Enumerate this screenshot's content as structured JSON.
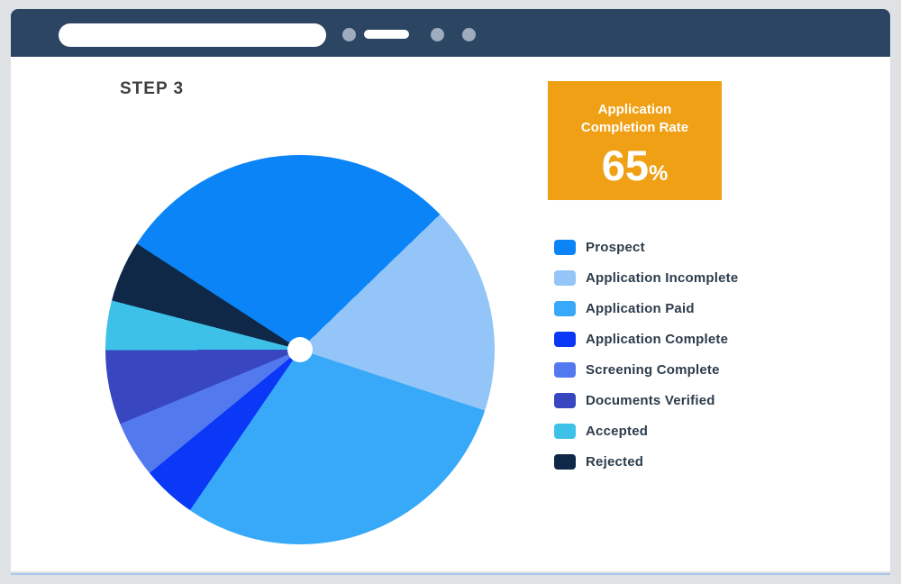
{
  "browser_chrome": {
    "bar_color": "#2B4562",
    "address_bar": {
      "value": "",
      "placeholder": ""
    },
    "control_dot_color": "#9FABBE"
  },
  "page": {
    "step_label": "STEP 3",
    "badge": {
      "title": "Application Completion Rate",
      "value": "65",
      "unit": "%",
      "bg_color": "#EFA014",
      "text_color": "#FFFFFF"
    },
    "chart_data": {
      "type": "pie",
      "title": "",
      "start_angle_deg": -57,
      "legend_position": "right",
      "center_hole": "small white dot",
      "slices": [
        {
          "label": "Prospect",
          "color": "#0A84F6",
          "percent": 28.6
        },
        {
          "label": "Application Incomplete",
          "color": "#93C5F8",
          "percent": 17.3
        },
        {
          "label": "Application Paid",
          "color": "#38A9F8",
          "percent": 29.5
        },
        {
          "label": "Application Complete",
          "color": "#0B38F6",
          "percent": 4.5
        },
        {
          "label": "Screening Complete",
          "color": "#5379EF",
          "percent": 4.7
        },
        {
          "label": "Documents Verified",
          "color": "#3847C0",
          "percent": 6.2
        },
        {
          "label": "Accepted",
          "color": "#3EC1E9",
          "percent": 4.1
        },
        {
          "label": "Rejected",
          "color": "#0F2847",
          "percent": 5.1
        }
      ]
    }
  },
  "colors": {
    "background": "#DFE2E5",
    "surface": "#FFFFFF",
    "chrome_bar": "#2B4562",
    "bottom_accent": "#A9C6EC",
    "step_label_text": "#3F3F3F",
    "legend_text": "#2D3C4C"
  }
}
